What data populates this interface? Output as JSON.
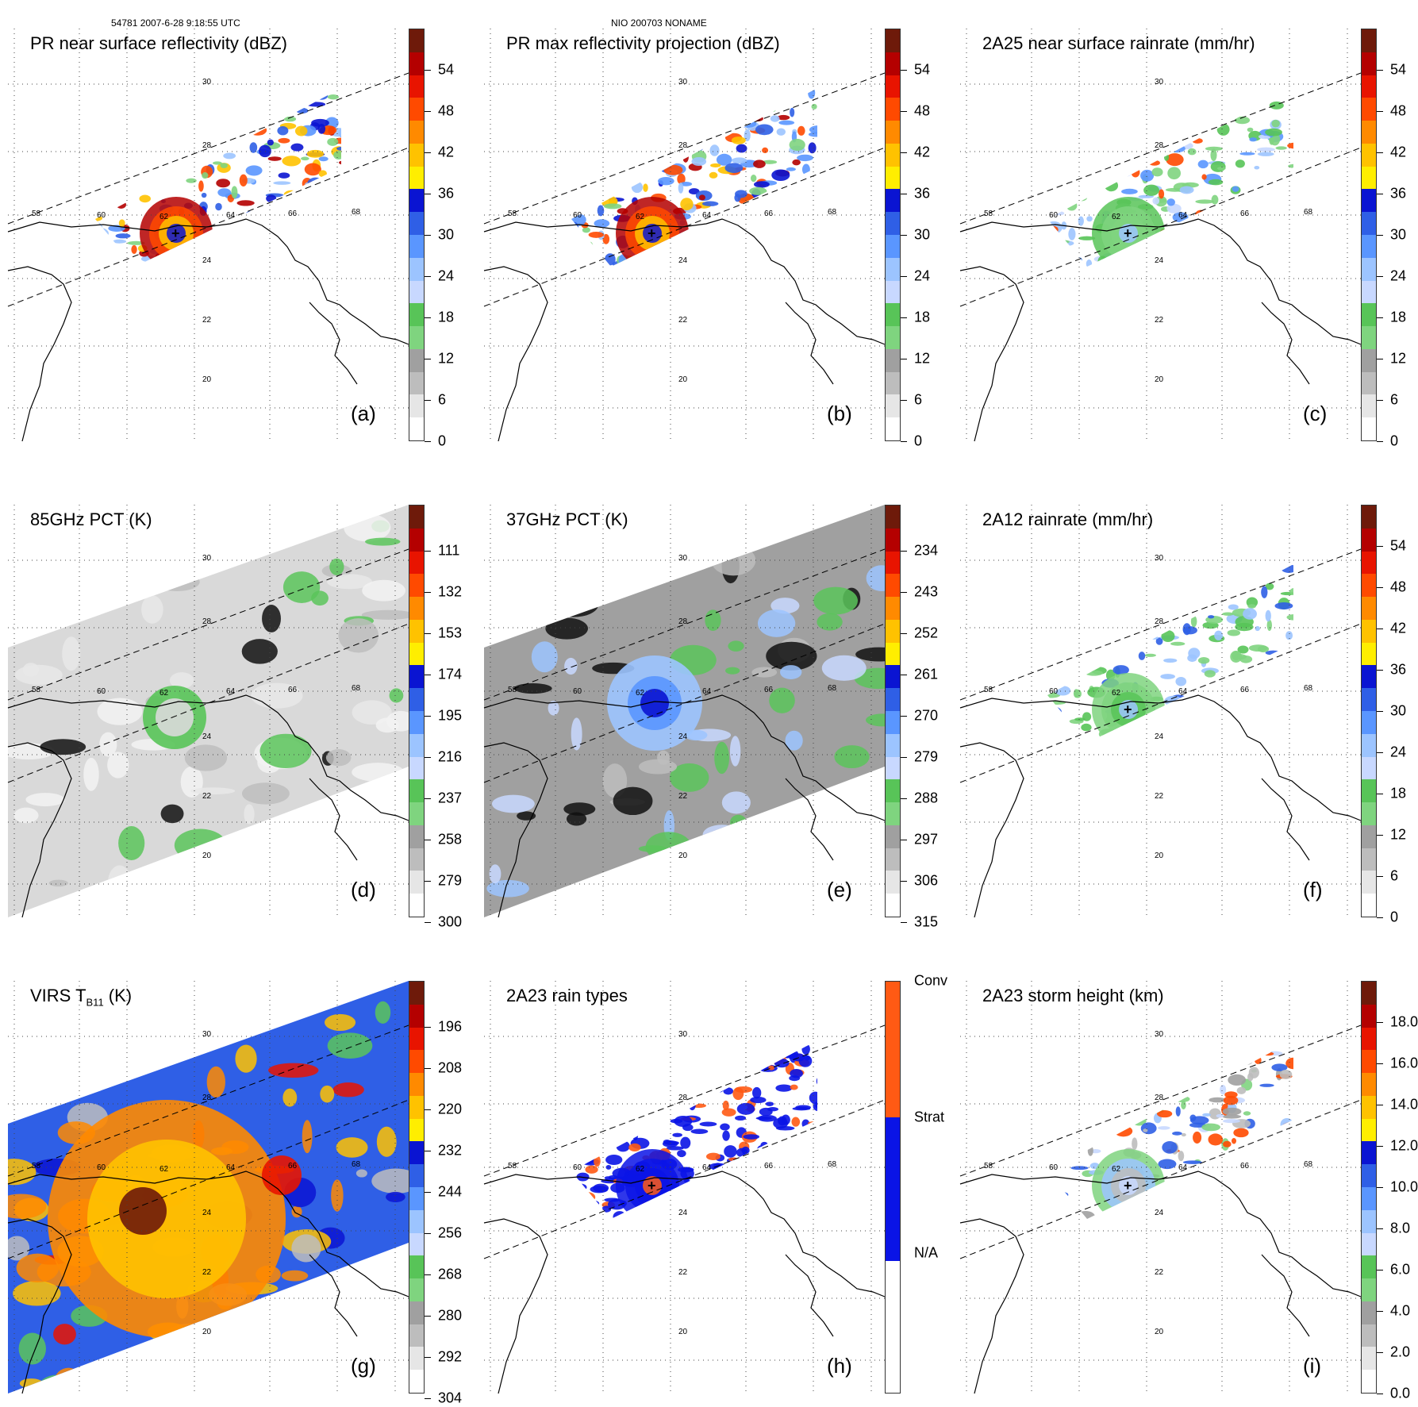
{
  "header": {
    "left": "54781 2007-6-28 9:18:55 UTC",
    "center": "NIO 200703 NONAME"
  },
  "map_labels": {
    "latitudes": [
      "30",
      "28",
      "24",
      "22",
      "20"
    ],
    "longitudes": [
      "58",
      "60",
      "62",
      "64",
      "66",
      "68"
    ]
  },
  "panels": [
    {
      "title": "PR near surface reflectivity (dBZ)",
      "label": "(a)",
      "ticks": [
        "54",
        "48",
        "42",
        "36",
        "30",
        "24",
        "18",
        "12",
        "6",
        "0"
      ],
      "field": "swath_dbz"
    },
    {
      "title": "PR max reflectivity projection (dBZ)",
      "label": "(b)",
      "ticks": [
        "54",
        "48",
        "42",
        "36",
        "30",
        "24",
        "18",
        "12",
        "6",
        "0"
      ],
      "field": "swath_dbz"
    },
    {
      "title": "2A25 near surface rainrate (mm/hr)",
      "label": "(c)",
      "ticks": [
        "54",
        "48",
        "42",
        "36",
        "30",
        "24",
        "18",
        "12",
        "6",
        "0"
      ],
      "field": "swath_rain"
    },
    {
      "title": "85GHz PCT (K)",
      "label": "(d)",
      "ticks": [
        "111",
        "132",
        "153",
        "174",
        "195",
        "216",
        "237",
        "258",
        "279",
        "300"
      ],
      "field": "wide_gray"
    },
    {
      "title": "37GHz PCT (K)",
      "label": "(e)",
      "ticks": [
        "234",
        "243",
        "252",
        "261",
        "270",
        "279",
        "288",
        "297",
        "306",
        "315"
      ],
      "field": "wide_blue"
    },
    {
      "title": "2A12 rainrate (mm/hr)",
      "label": "(f)",
      "ticks": [
        "54",
        "48",
        "42",
        "36",
        "30",
        "24",
        "18",
        "12",
        "6",
        "0"
      ],
      "field": "wide_rain"
    },
    {
      "title": "VIRS T",
      "title_sub": "B11",
      "title_suffix": " (K)",
      "label": "(g)",
      "ticks": [
        "196",
        "208",
        "220",
        "232",
        "244",
        "256",
        "268",
        "280",
        "292",
        "304"
      ],
      "field": "wide_ir"
    },
    {
      "title": "2A23 rain types",
      "label": "(h)",
      "ticks": [
        "Conv",
        "Strat",
        "N/A"
      ],
      "field": "swath_type"
    },
    {
      "title": "2A23 storm height (km)",
      "label": "(i)",
      "ticks": [
        "18.0",
        "16.0",
        "14.0",
        "12.0",
        "10.0",
        "8.0",
        "6.0",
        "4.0",
        "2.0",
        "0.0"
      ],
      "field": "swath_height"
    }
  ],
  "colors": {
    "scale": [
      "#ffffff",
      "#e6e6e6",
      "#bdbdbd",
      "#a0a0a0",
      "#7fd47f",
      "#58c458",
      "#c8d8ff",
      "#9cc4ff",
      "#5a96ff",
      "#2f5fe6",
      "#0a14d2",
      "#ffee00",
      "#ffc200",
      "#ff8a00",
      "#ff4a00",
      "#e81400",
      "#b40000",
      "#6e1a0a"
    ],
    "conv": "#ff5a14",
    "strat": "#0a14e6",
    "land_line": "#000000"
  }
}
